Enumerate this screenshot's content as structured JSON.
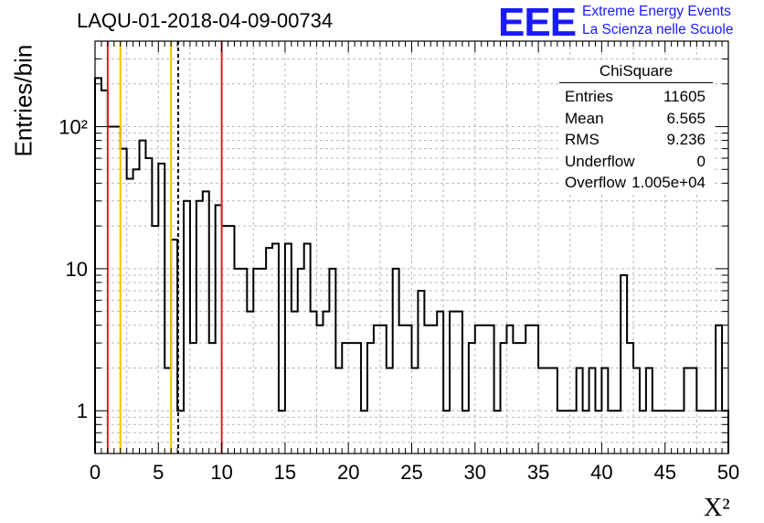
{
  "header": {
    "run_id": "LAQU-01-2018-04-09-00734",
    "logo_text": "EEE",
    "logo_line1": "Extreme Energy Events",
    "logo_line2": "La Scienza nelle Scuole",
    "logo_color": "#1a1aff"
  },
  "stats_box": {
    "title": "ChiSquare",
    "rows": [
      {
        "label": "Entries",
        "value": "11605"
      },
      {
        "label": "Mean",
        "value": "6.565"
      },
      {
        "label": "RMS",
        "value": "9.236"
      },
      {
        "label": "Underflow",
        "value": "0"
      },
      {
        "label": "Overflow",
        "value": "1.005e+04"
      }
    ]
  },
  "chart_data": {
    "type": "histogram",
    "title": "LAQU-01-2018-04-09-00734",
    "xlabel": "X²",
    "ylabel": "Entries/bin",
    "xlim": [
      0,
      50
    ],
    "ylim": [
      0.5,
      400
    ],
    "y_scale": "log",
    "grid": true,
    "bin_width": 0.5,
    "x_ticks": [
      0,
      5,
      10,
      15,
      20,
      25,
      30,
      35,
      40,
      45,
      50
    ],
    "y_ticks": [
      {
        "value": 1,
        "label": "1"
      },
      {
        "value": 10,
        "label": "10"
      },
      {
        "value": 100,
        "label": "10²"
      }
    ],
    "bin_contents": [
      220,
      180,
      100,
      100,
      70,
      43,
      50,
      80,
      60,
      20,
      55,
      2,
      16,
      1,
      30,
      3,
      30,
      35,
      3,
      28,
      20,
      20,
      10,
      10,
      5,
      10,
      10,
      14,
      15,
      1,
      15,
      5,
      10,
      15,
      5,
      4,
      5,
      10,
      2,
      3,
      3,
      3,
      1,
      3,
      4,
      4,
      2,
      10,
      4,
      4,
      2,
      7,
      4,
      4,
      5,
      1,
      5,
      5,
      1,
      3,
      4,
      4,
      4,
      1,
      3,
      4,
      3,
      3,
      4,
      4,
      2,
      2,
      2,
      1,
      1,
      1,
      2,
      1,
      2,
      1,
      2,
      1,
      1,
      9,
      3,
      2,
      1,
      2,
      1,
      1,
      1,
      1,
      1,
      2,
      2,
      1,
      1,
      1,
      4,
      1
    ],
    "vertical_lines": [
      {
        "x": 1,
        "color": "#e02020",
        "style": "solid"
      },
      {
        "x": 2,
        "color": "#f2c200",
        "style": "solid"
      },
      {
        "x": 6,
        "color": "#f2c200",
        "style": "solid"
      },
      {
        "x": 6.565,
        "color": "#000000",
        "style": "dashed"
      },
      {
        "x": 10,
        "color": "#e02020",
        "style": "solid"
      }
    ]
  }
}
